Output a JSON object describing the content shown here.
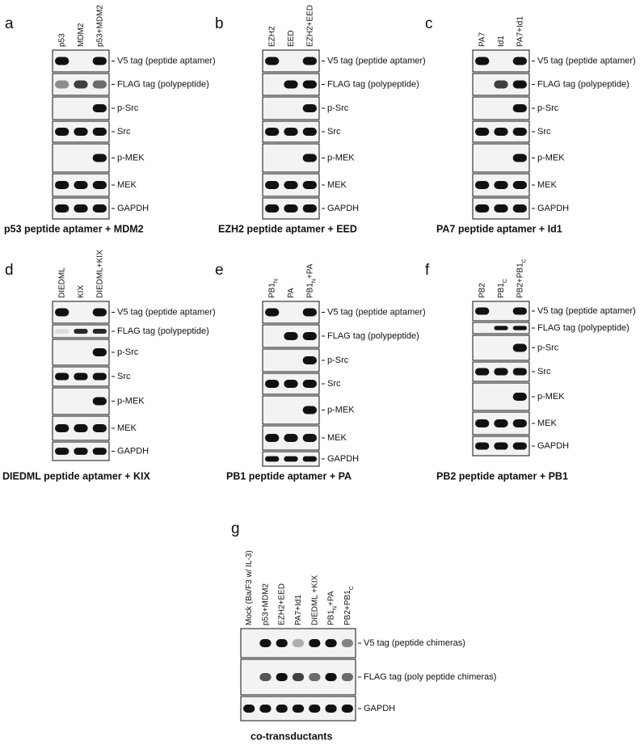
{
  "panels": [
    {
      "letter": "a",
      "lanes": [
        "p53",
        "MDM2",
        "p53+MDM2"
      ],
      "rows": [
        "V5 tag (peptide aptamer)",
        "FLAG tag (polypeptide)",
        "p-Src",
        "Src",
        "p-MEK",
        "MEK",
        "GAPDH"
      ],
      "caption": "p53 peptide aptamer + MDM2"
    },
    {
      "letter": "b",
      "lanes": [
        "EZH2",
        "EED",
        "EZH2+EED"
      ],
      "rows": [
        "V5 tag (peptide aptamer)",
        "FLAG tag (polypeptide)",
        "p-Src",
        "Src",
        "p-MEK",
        "MEK",
        "GAPDH"
      ],
      "caption": "EZH2 peptide aptamer + EED"
    },
    {
      "letter": "c",
      "lanes": [
        "PA7",
        "Id1",
        "PA7+Id1"
      ],
      "rows": [
        "V5 tag (peptide aptamer)",
        "FLAG tag (polypeptide)",
        "p-Src",
        "Src",
        "p-MEK",
        "MEK",
        "GAPDH"
      ],
      "caption": "PA7 peptide aptamer + Id1"
    },
    {
      "letter": "d",
      "lanes": [
        "DIEDML",
        "KIX",
        "DIEDML+KIX"
      ],
      "rows": [
        "V5 tag (peptide aptamer)",
        "FLAG tag (polypeptide)",
        "p-Src",
        "Src",
        "p-MEK",
        "MEK",
        "GAPDH"
      ],
      "caption": "DIEDML peptide aptamer + KIX"
    },
    {
      "letter": "e",
      "lanes": [
        {
          "text": "PB1",
          "sub": "N"
        },
        "PA",
        {
          "text": "PB1",
          "sub": "N",
          "after": "+PA"
        }
      ],
      "rows": [
        "V5 tag (peptide aptamer)",
        "FLAG tag (polypeptide)",
        "p-Src",
        "Src",
        "p-MEK",
        "MEK",
        "GAPDH"
      ],
      "caption": "PB1 peptide aptamer + PA"
    },
    {
      "letter": "f",
      "lanes": [
        "PB2",
        {
          "text": "PB1",
          "sub": "C"
        },
        {
          "text": "PB2+PB1",
          "sub": "C"
        }
      ],
      "rows": [
        "V5 tag (peptide aptamer)",
        "FLAG tag (polypeptide)",
        "p-Src",
        "Src",
        "p-MEK",
        "MEK",
        "GAPDH"
      ],
      "caption": "PB2 peptide aptamer + PB1"
    },
    {
      "letter": "g",
      "lanes": [
        "Mock (Ba/F3 w/ IL-3)",
        "p53+MDM2",
        "EZH2+EED",
        "PA7+Id1",
        "DIEDML +KIX",
        {
          "text": "PB1",
          "sub": "N",
          "after": "+PA"
        },
        {
          "text": "PB2+PB1",
          "sub": "C"
        }
      ],
      "rows": [
        "V5 tag (peptide chimeras)",
        "FLAG tag (poly peptide chimeras)",
        "GAPDH"
      ],
      "caption": "co-transductants"
    }
  ]
}
